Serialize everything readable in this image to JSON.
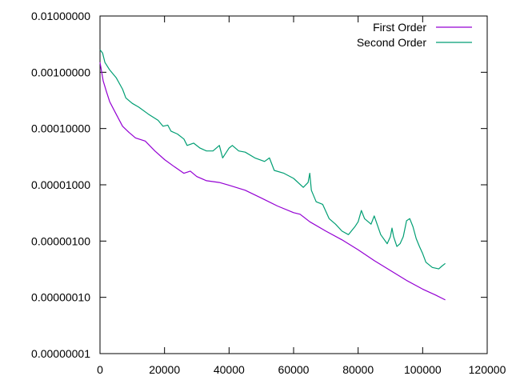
{
  "chart_data": {
    "type": "line",
    "title": "",
    "xlabel": "",
    "ylabel": "",
    "xlim": [
      0,
      120000
    ],
    "ylim": [
      1e-08,
      0.01
    ],
    "y_scale": "log",
    "grid": false,
    "legend_position": "top-right",
    "x_ticks": [
      "0",
      "20000",
      "40000",
      "60000",
      "80000",
      "100000",
      "120000"
    ],
    "x_tick_values": [
      0,
      20000,
      40000,
      60000,
      80000,
      100000,
      120000
    ],
    "y_ticks": [
      "0.00000001",
      "0.00000010",
      "0.00000100",
      "0.00001000",
      "0.00010000",
      "0.00100000",
      "0.01000000"
    ],
    "y_tick_values": [
      1e-08,
      1e-07,
      1e-06,
      1e-05,
      0.0001,
      0.001,
      0.01
    ],
    "series": [
      {
        "name": "First Order",
        "color": "#9400d3",
        "points": [
          [
            0,
            0.0015
          ],
          [
            1000,
            0.0007
          ],
          [
            2000,
            0.00045
          ],
          [
            3000,
            0.0003
          ],
          [
            5000,
            0.00018
          ],
          [
            7000,
            0.00011
          ],
          [
            9000,
            8.5e-05
          ],
          [
            11000,
            6.8e-05
          ],
          [
            14000,
            6e-05
          ],
          [
            17000,
            4e-05
          ],
          [
            20000,
            2.8e-05
          ],
          [
            23000,
            2.1e-05
          ],
          [
            26000,
            1.6e-05
          ],
          [
            28000,
            1.75e-05
          ],
          [
            30000,
            1.4e-05
          ],
          [
            33000,
            1.18e-05
          ],
          [
            37000,
            1.1e-05
          ],
          [
            40000,
            9.8e-06
          ],
          [
            45000,
            8e-06
          ],
          [
            50000,
            5.8e-06
          ],
          [
            55000,
            4.2e-06
          ],
          [
            60000,
            3.2e-06
          ],
          [
            62000,
            3e-06
          ],
          [
            65000,
            2.2e-06
          ],
          [
            70000,
            1.5e-06
          ],
          [
            75000,
            1.05e-06
          ],
          [
            80000,
            7e-07
          ],
          [
            85000,
            4.5e-07
          ],
          [
            90000,
            3e-07
          ],
          [
            95000,
            2e-07
          ],
          [
            100000,
            1.4e-07
          ],
          [
            104000,
            1.1e-07
          ],
          [
            107000,
            9e-08
          ]
        ]
      },
      {
        "name": "Second Order",
        "color": "#009e73",
        "points": [
          [
            0,
            0.0025
          ],
          [
            800,
            0.0022
          ],
          [
            1500,
            0.0015
          ],
          [
            3000,
            0.0011
          ],
          [
            5000,
            0.0008
          ],
          [
            7000,
            0.0005
          ],
          [
            8000,
            0.00035
          ],
          [
            10000,
            0.00028
          ],
          [
            12000,
            0.00024
          ],
          [
            15000,
            0.00018
          ],
          [
            18000,
            0.00014
          ],
          [
            19500,
            0.00011
          ],
          [
            21000,
            0.000115
          ],
          [
            22000,
            9e-05
          ],
          [
            24000,
            8e-05
          ],
          [
            26000,
            6.5e-05
          ],
          [
            27000,
            5e-05
          ],
          [
            29000,
            5.5e-05
          ],
          [
            31000,
            4.5e-05
          ],
          [
            33000,
            4e-05
          ],
          [
            35000,
            4e-05
          ],
          [
            37000,
            5e-05
          ],
          [
            38000,
            3e-05
          ],
          [
            40000,
            4.5e-05
          ],
          [
            41000,
            5e-05
          ],
          [
            43000,
            4e-05
          ],
          [
            45000,
            3.8e-05
          ],
          [
            48000,
            3e-05
          ],
          [
            51000,
            2.6e-05
          ],
          [
            52500,
            3e-05
          ],
          [
            54000,
            1.8e-05
          ],
          [
            57000,
            1.6e-05
          ],
          [
            60000,
            1.3e-05
          ],
          [
            63000,
            9e-06
          ],
          [
            64500,
            1.1e-05
          ],
          [
            65000,
            1.6e-05
          ],
          [
            65500,
            8e-06
          ],
          [
            67000,
            5e-06
          ],
          [
            69000,
            4.5e-06
          ],
          [
            71000,
            2.5e-06
          ],
          [
            73000,
            2e-06
          ],
          [
            75000,
            1.5e-06
          ],
          [
            77000,
            1.3e-06
          ],
          [
            79000,
            1.8e-06
          ],
          [
            80000,
            2.2e-06
          ],
          [
            81000,
            3.5e-06
          ],
          [
            82000,
            2.5e-06
          ],
          [
            84000,
            2e-06
          ],
          [
            85000,
            2.8e-06
          ],
          [
            87000,
            1.3e-06
          ],
          [
            89000,
            9e-07
          ],
          [
            90000,
            1.2e-06
          ],
          [
            90500,
            1.7e-06
          ],
          [
            91000,
            1.2e-06
          ],
          [
            92000,
            8e-07
          ],
          [
            93000,
            9e-07
          ],
          [
            94000,
            1.2e-06
          ],
          [
            95000,
            2.3e-06
          ],
          [
            96000,
            2.5e-06
          ],
          [
            97000,
            1.8e-06
          ],
          [
            98000,
            1.1e-06
          ],
          [
            99000,
            8e-07
          ],
          [
            100000,
            6e-07
          ],
          [
            101000,
            4.2e-07
          ],
          [
            103000,
            3.4e-07
          ],
          [
            105000,
            3.2e-07
          ],
          [
            106000,
            3.6e-07
          ],
          [
            107000,
            4e-07
          ]
        ]
      }
    ]
  }
}
